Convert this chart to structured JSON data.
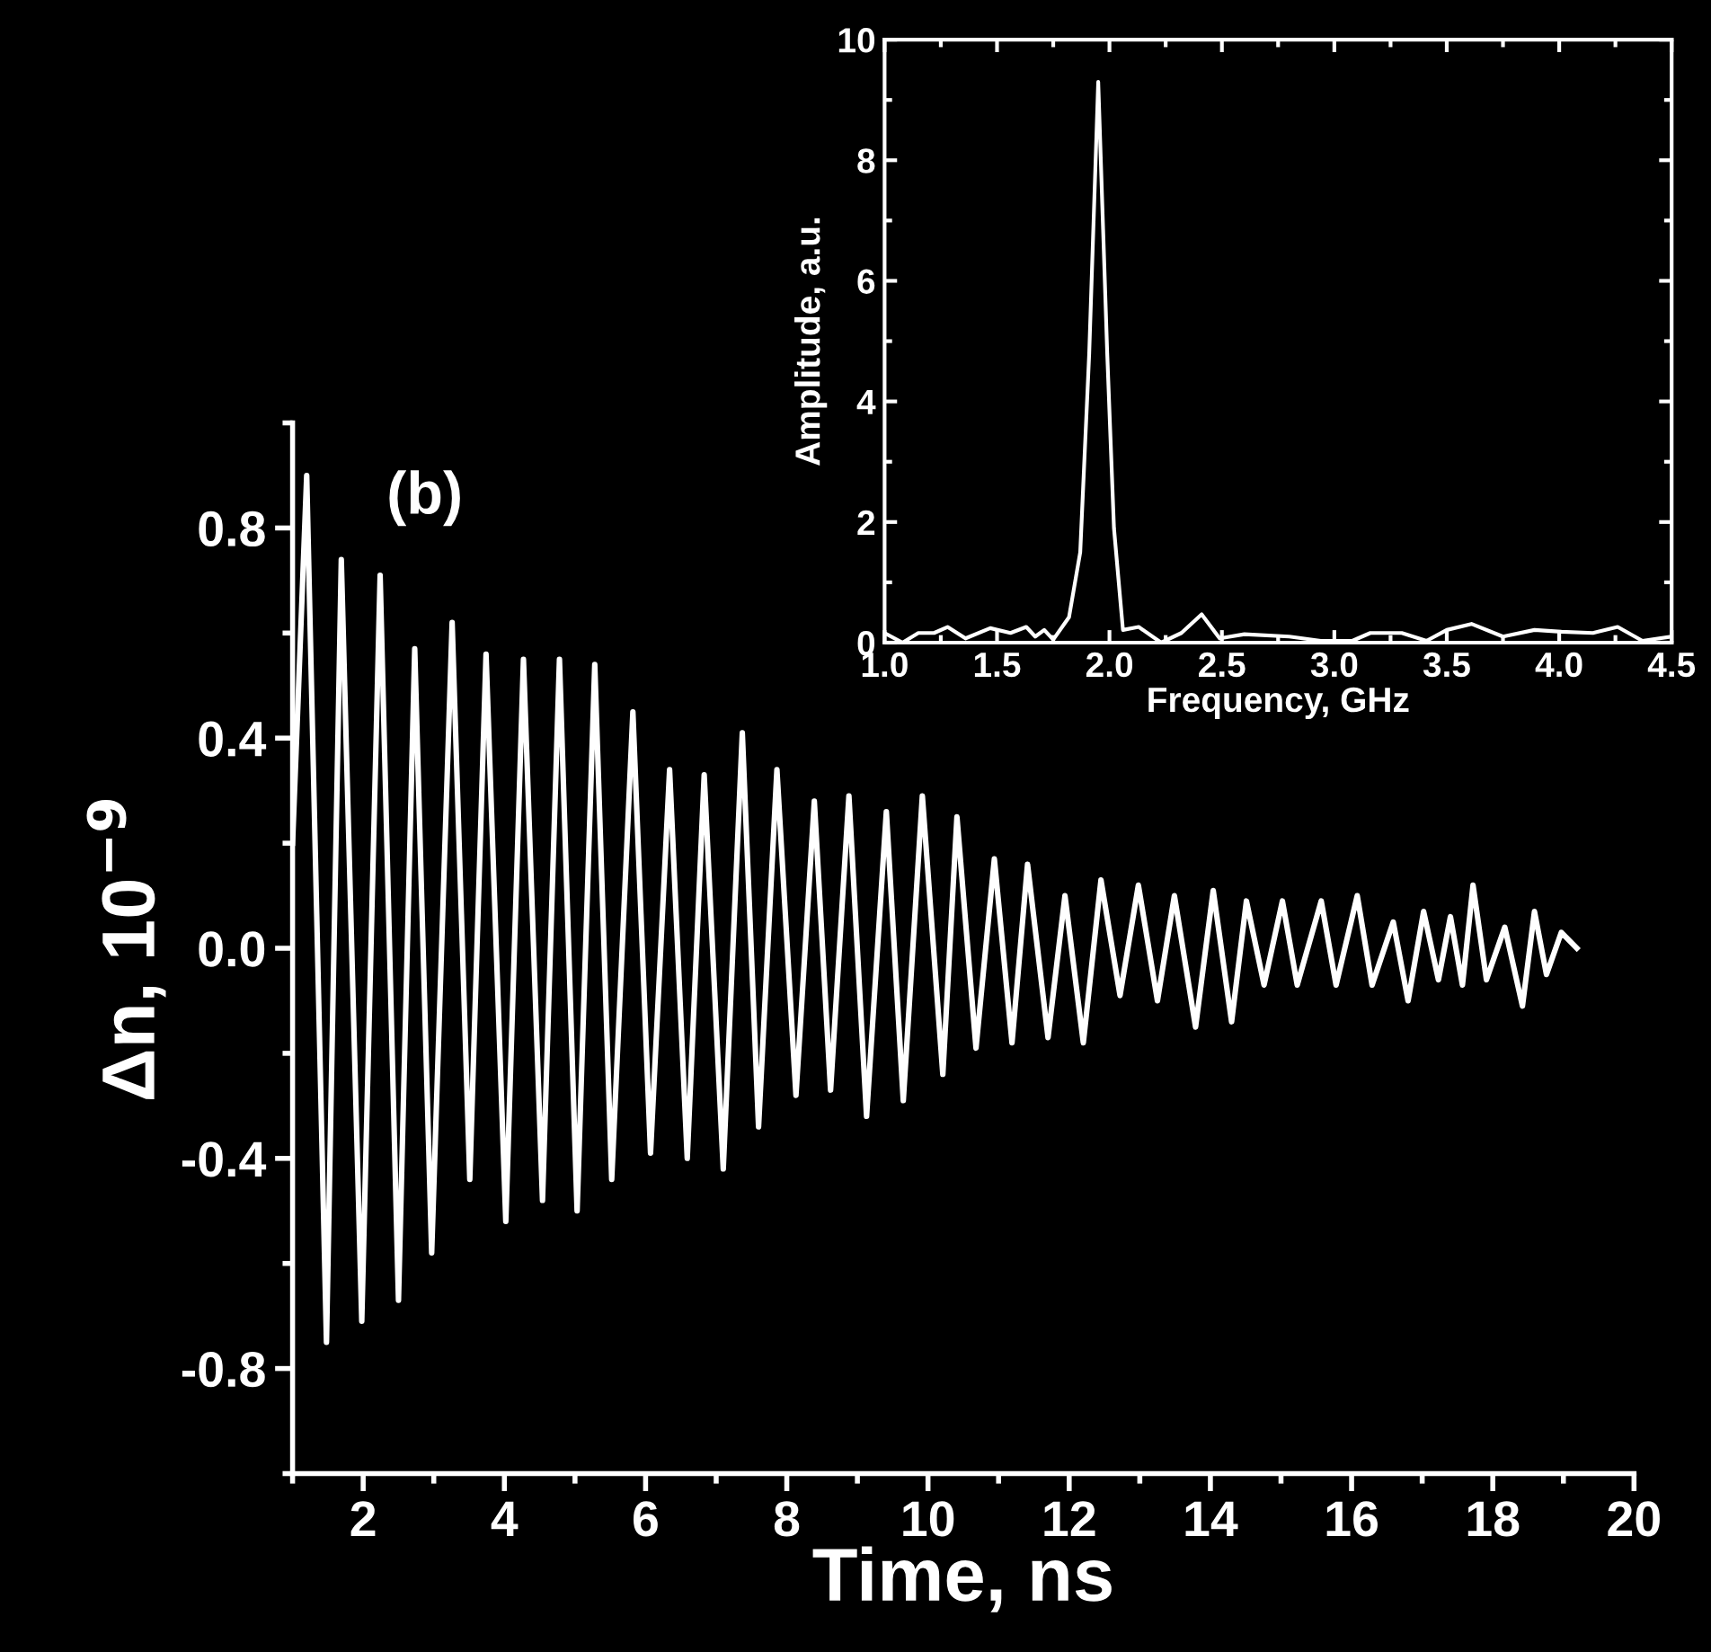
{
  "chart_data": [
    {
      "type": "line",
      "xlabel": "Time, ns",
      "ylabel": "Δn, 10$^{−9}$",
      "annotations": [
        "(b)"
      ],
      "xlim": [
        1,
        20
      ],
      "ylim": [
        -1,
        1
      ],
      "xticks": [
        2,
        4,
        6,
        8,
        10,
        12,
        14,
        16,
        18,
        20
      ],
      "yticks": [
        {
          "value": -0.8,
          "label": "-0.8"
        },
        {
          "value": -0.4,
          "label": "-0.4"
        },
        {
          "value": 0,
          "label": "0.0"
        },
        {
          "value": 0.4,
          "label": "0.4"
        },
        {
          "value": 0.8,
          "label": "0.8"
        }
      ],
      "grid": false,
      "marker": "none",
      "line_style": "solid",
      "series": [
        {
          "color": "#ffffff",
          "x": [
            1.0,
            1.2,
            1.48,
            1.69,
            1.98,
            2.24,
            2.5,
            2.73,
            2.97,
            3.26,
            3.51,
            3.74,
            4.02,
            4.27,
            4.54,
            4.78,
            5.03,
            5.28,
            5.52,
            5.82,
            6.07,
            6.34,
            6.59,
            6.83,
            7.1,
            7.37,
            7.6,
            7.86,
            8.13,
            8.39,
            8.62,
            8.88,
            9.13,
            9.41,
            9.65,
            9.92,
            10.21,
            10.41,
            10.68,
            10.94,
            11.19,
            11.41,
            11.7,
            11.94,
            12.2,
            12.45,
            12.72,
            12.98,
            13.25,
            13.49,
            13.79,
            14.04,
            14.3,
            14.51,
            14.76,
            15.02,
            15.23,
            15.57,
            15.78,
            16.08,
            16.29,
            16.59,
            16.8,
            17.02,
            17.23,
            17.4,
            17.57,
            17.72,
            17.91,
            18.17,
            18.42,
            18.59,
            18.76,
            18.97,
            19.19
          ],
          "values": [
            0.2,
            0.9,
            -0.75,
            0.74,
            -0.71,
            0.71,
            -0.67,
            0.57,
            -0.58,
            0.62,
            -0.44,
            0.56,
            -0.52,
            0.55,
            -0.48,
            0.55,
            -0.5,
            0.54,
            -0.44,
            0.45,
            -0.39,
            0.34,
            -0.4,
            0.33,
            -0.42,
            0.41,
            -0.34,
            0.34,
            -0.28,
            0.28,
            -0.27,
            0.29,
            -0.32,
            0.26,
            -0.29,
            0.29,
            -0.24,
            0.25,
            -0.19,
            0.17,
            -0.18,
            0.16,
            -0.17,
            0.1,
            -0.18,
            0.13,
            -0.09,
            0.12,
            -0.1,
            0.1,
            -0.15,
            0.11,
            -0.14,
            0.09,
            -0.07,
            0.09,
            -0.07,
            0.09,
            -0.07,
            0.1,
            -0.07,
            0.05,
            -0.1,
            0.07,
            -0.06,
            0.06,
            -0.07,
            0.12,
            -0.06,
            0.04,
            -0.11,
            0.07,
            -0.05,
            0.03,
            0.0
          ]
        }
      ]
    },
    {
      "type": "line",
      "xlabel": "Frequency, GHz",
      "ylabel": "Amplitude, a.u.",
      "xlim": [
        1,
        4.5
      ],
      "ylim": [
        0,
        10
      ],
      "xticks": [
        {
          "value": 1,
          "label": "1.0"
        },
        {
          "value": 1.5,
          "label": "1.5"
        },
        {
          "value": 2,
          "label": "2.0"
        },
        {
          "value": 2.5,
          "label": "2.5"
        },
        {
          "value": 3,
          "label": "3.0"
        },
        {
          "value": 3.5,
          "label": "3.5"
        },
        {
          "value": 4,
          "label": "4.0"
        },
        {
          "value": 4.5,
          "label": "4.5"
        }
      ],
      "yticks": [
        0,
        2,
        4,
        6,
        8,
        10
      ],
      "grid": false,
      "marker": "none",
      "line_style": "solid",
      "series": [
        {
          "color": "#ffffff",
          "x": [
            1.0,
            1.08,
            1.15,
            1.22,
            1.28,
            1.36,
            1.47,
            1.56,
            1.63,
            1.67,
            1.71,
            1.75,
            1.82,
            1.87,
            1.91,
            1.95,
            1.99,
            2.02,
            2.06,
            2.13,
            2.23,
            2.32,
            2.41,
            2.49,
            2.6,
            2.8,
            2.94,
            3.08,
            3.16,
            3.3,
            3.41,
            3.5,
            3.61,
            3.75,
            3.89,
            4.01,
            4.15,
            4.26,
            4.37,
            4.5
          ],
          "values": [
            0.16,
            0.0,
            0.16,
            0.16,
            0.26,
            0.07,
            0.24,
            0.16,
            0.26,
            0.1,
            0.21,
            0.05,
            0.42,
            1.5,
            4.8,
            9.3,
            4.8,
            1.9,
            0.21,
            0.26,
            0.0,
            0.16,
            0.47,
            0.07,
            0.14,
            0.1,
            0.03,
            0.03,
            0.16,
            0.16,
            0.03,
            0.21,
            0.31,
            0.1,
            0.21,
            0.18,
            0.16,
            0.26,
            0.03,
            0.1
          ]
        }
      ]
    }
  ]
}
